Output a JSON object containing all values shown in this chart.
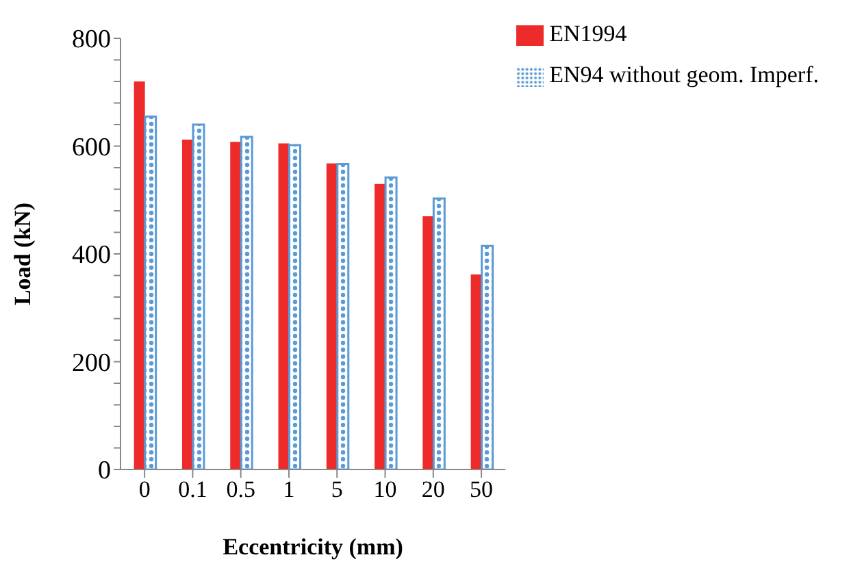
{
  "chart_data": {
    "type": "bar",
    "xlabel": "Eccentricity (mm)",
    "ylabel": "Load (kN)",
    "categories": [
      "0",
      "0.1",
      "0.5",
      "1",
      "5",
      "10",
      "20",
      "50"
    ],
    "series": [
      {
        "name": "EN1994",
        "color": "#ee2b2b",
        "values": [
          720,
          612,
          608,
          605,
          568,
          530,
          470,
          362
        ]
      },
      {
        "name": "EN94 without geom. Imperf.",
        "color": "#5b9bd5",
        "values": [
          655,
          640,
          617,
          602,
          567,
          542,
          503,
          415
        ]
      }
    ],
    "ylim": [
      0,
      800
    ],
    "yticks": [
      0,
      {
        "value": 40,
        "label": null
      },
      {
        "value": 80,
        "label": null
      },
      {
        "value": 120,
        "label": null
      },
      {
        "value": 160,
        "label": null
      },
      200,
      {
        "value": 240,
        "label": null
      },
      {
        "value": 280,
        "label": null
      },
      {
        "value": 320,
        "label": null
      },
      {
        "value": 360,
        "label": null
      },
      400,
      {
        "value": 440,
        "label": null
      },
      {
        "value": 480,
        "label": null
      },
      {
        "value": 520,
        "label": null
      },
      {
        "value": 560,
        "label": null
      },
      600,
      {
        "value": 640,
        "label": null
      },
      {
        "value": 680,
        "label": null
      },
      {
        "value": 720,
        "label": null
      },
      {
        "value": 760,
        "label": null
      },
      800
    ],
    "grid": false,
    "legend": "top right"
  }
}
